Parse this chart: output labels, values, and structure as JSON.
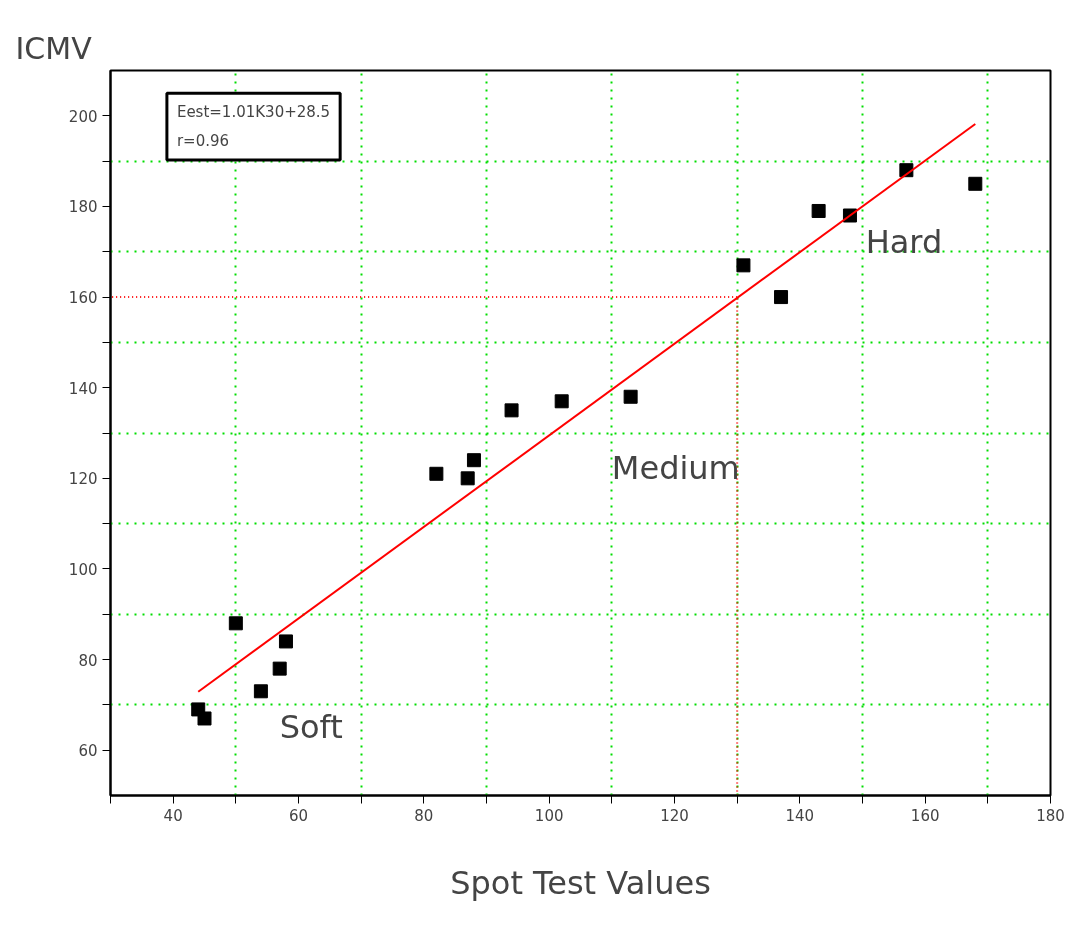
{
  "chart_data": {
    "type": "scatter",
    "xlabel": "Spot Test Values",
    "ylabel": "ICMV",
    "xlim": [
      30,
      180
    ],
    "ylim": [
      50,
      210
    ],
    "xticks": [
      {
        "value": 30,
        "label": null
      },
      40,
      {
        "value": 50,
        "label": null
      },
      60,
      {
        "value": 70,
        "label": null
      },
      80,
      {
        "value": 90,
        "label": null
      },
      100,
      {
        "value": 110,
        "label": null
      },
      120,
      {
        "value": 130,
        "label": null
      },
      140,
      {
        "value": 150,
        "label": null
      },
      160,
      {
        "value": 170,
        "label": null
      },
      180
    ],
    "yticks": [
      60,
      {
        "value": 70,
        "label": null
      },
      80,
      {
        "value": 90,
        "label": null
      },
      100,
      {
        "value": 110,
        "label": null
      },
      120,
      {
        "value": 130,
        "label": null
      },
      140,
      {
        "value": 150,
        "label": null
      },
      160,
      {
        "value": 170,
        "label": null
      },
      180,
      {
        "value": 190,
        "label": null
      },
      200
    ],
    "grid": true,
    "series": [
      {
        "marker": "square",
        "color": "#000000",
        "x": [
          44,
          45,
          50,
          54,
          57,
          58,
          82,
          87,
          88,
          94,
          102,
          113,
          131,
          137,
          143,
          148,
          157,
          168
        ],
        "values": [
          69,
          67,
          88,
          73,
          78,
          84,
          121,
          120,
          124,
          135,
          137,
          138,
          167,
          160,
          179,
          178,
          188,
          185
        ]
      },
      {
        "type": "line",
        "color": "#ff0000",
        "x": [
          44,
          168
        ],
        "values": [
          72.9,
          198.2
        ]
      }
    ],
    "ref_lines": [
      {
        "axis": "y",
        "value": 160,
        "color": "#ff0000",
        "line_style": "dotted"
      },
      {
        "axis": "x",
        "value": 130,
        "color": "#ff0000",
        "line_style": "dotted"
      }
    ],
    "annotations": [
      "Eest=1.01K30+28.5\nr=0.96",
      "Hard",
      "Medium",
      "Soft"
    ]
  }
}
